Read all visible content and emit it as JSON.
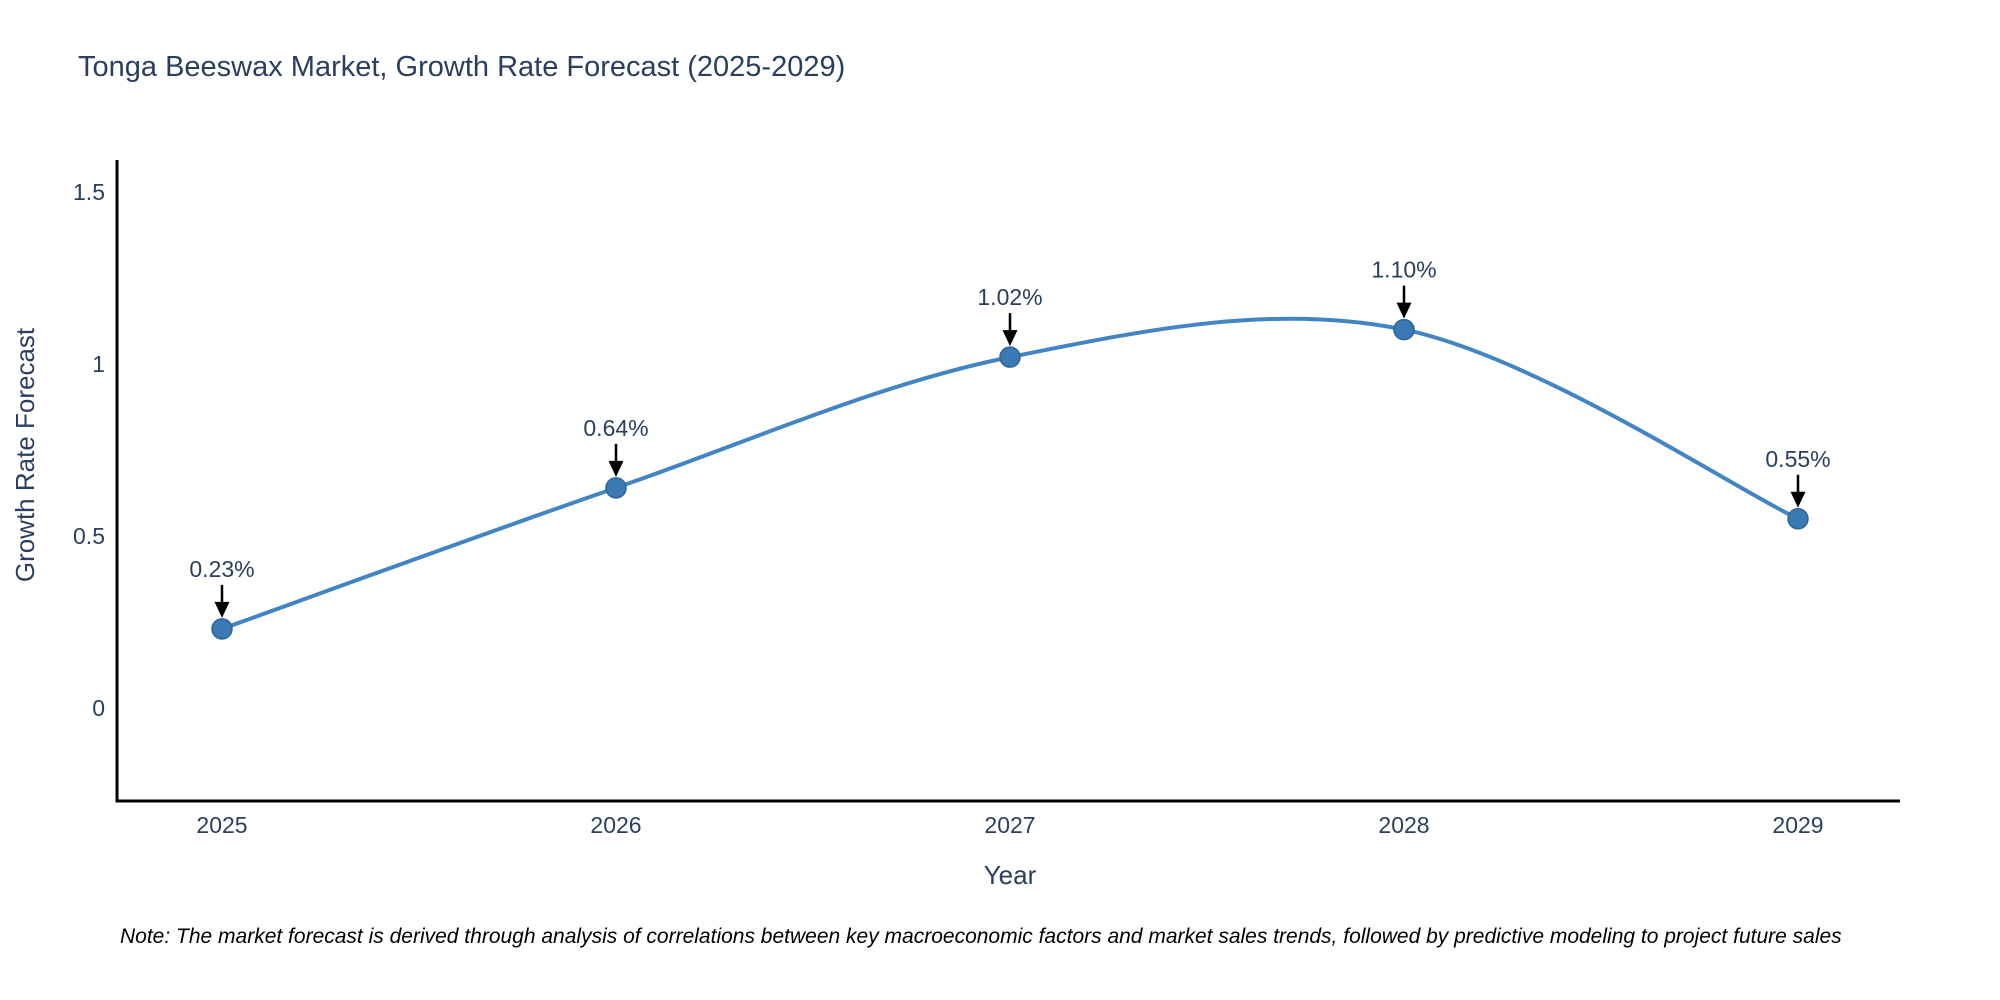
{
  "title": "Tonga Beeswax Market, Growth Rate Forecast (2025-2029)",
  "note": "Note: The market forecast is derived through analysis of correlations between key macroeconomic factors and market sales trends, followed by predictive modeling to project future sales",
  "chart_data": {
    "type": "line",
    "title": "Tonga Beeswax Market, Growth Rate Forecast (2025-2029)",
    "xlabel": "Year",
    "ylabel": "Growth Rate Forecast",
    "categories": [
      "2025",
      "2026",
      "2027",
      "2028",
      "2029"
    ],
    "values": [
      0.23,
      0.64,
      1.02,
      1.1,
      0.55
    ],
    "point_labels": [
      "0.23%",
      "0.64%",
      "1.02%",
      "1.10%",
      "0.55%"
    ],
    "yticks": [
      0,
      0.5,
      1,
      1.5
    ],
    "ytick_labels": [
      "0",
      "0.5",
      "1",
      "1.5"
    ],
    "ylim": [
      -0.28,
      1.62
    ],
    "line_shape": "spline",
    "grid": false,
    "legend": "none",
    "colors": {
      "line": "#4285c2",
      "marker_fill": "#3a79b5",
      "marker_edge": "#2e6496",
      "axis": "#000000",
      "text": "#2a3f5f",
      "arrow": "#000000",
      "note": "#000000",
      "background": "#ffffff"
    }
  }
}
